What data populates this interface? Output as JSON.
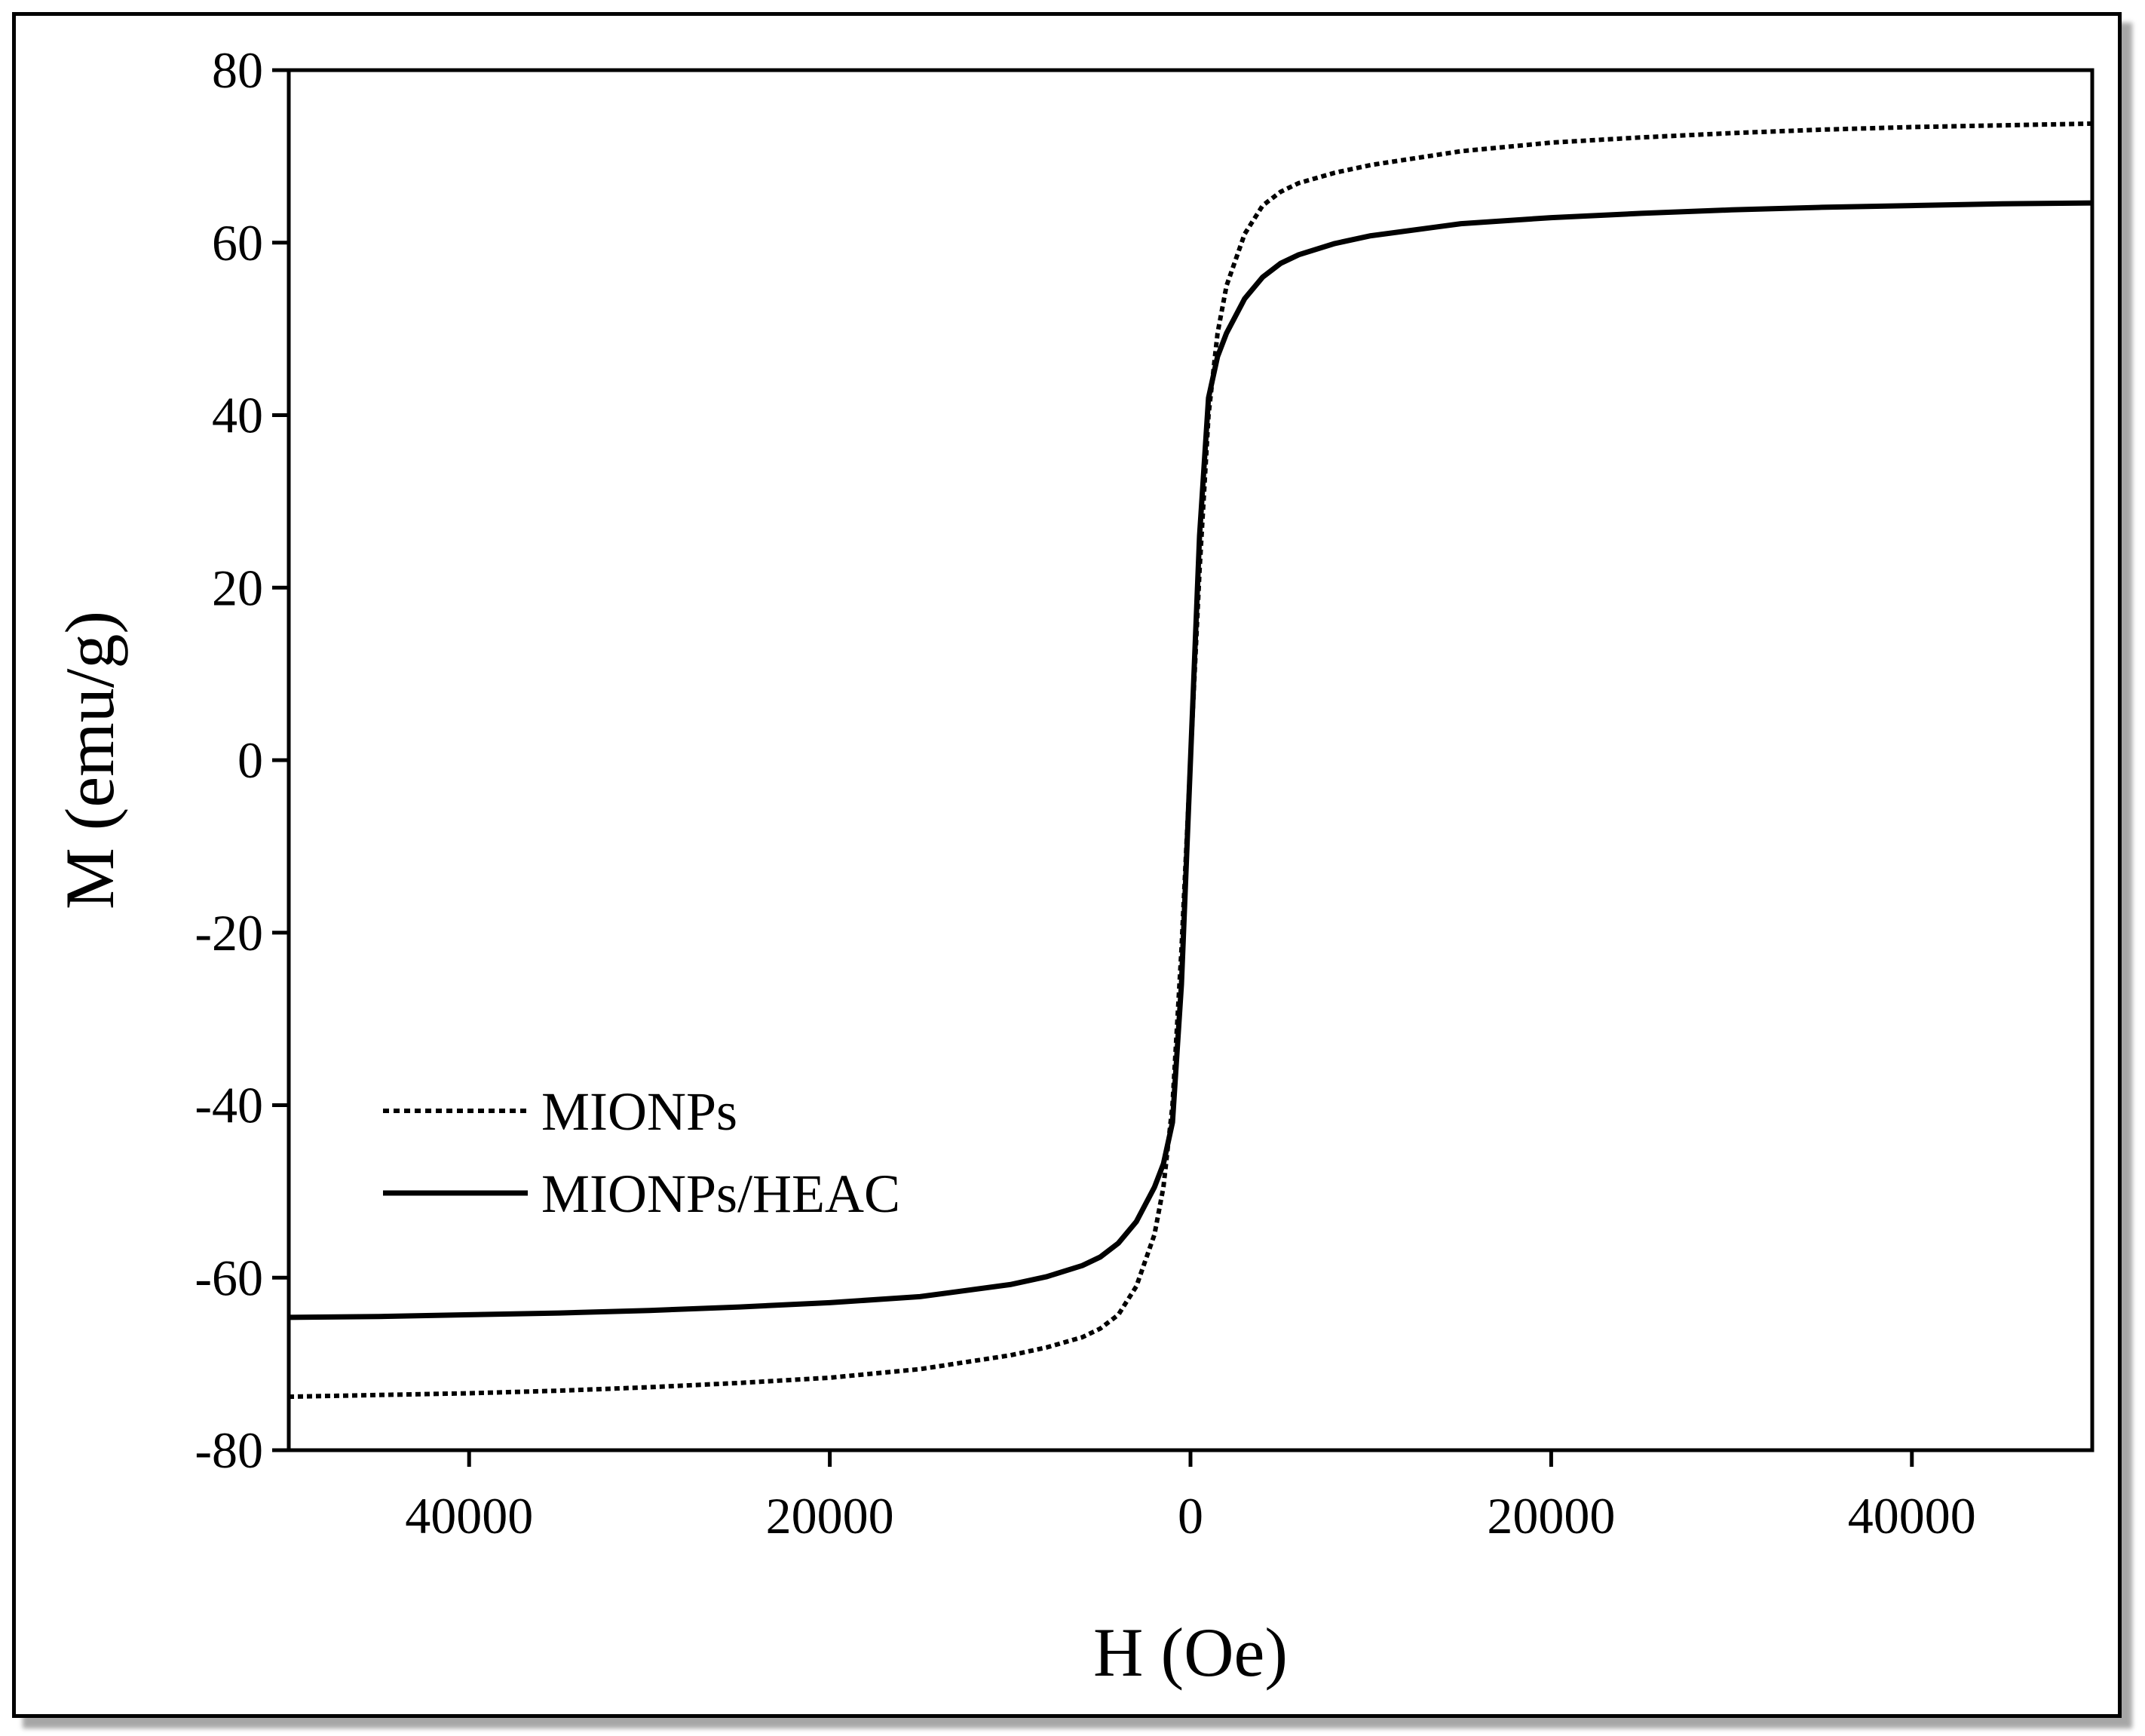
{
  "chart_data": {
    "type": "line",
    "title": "",
    "xlabel": "H (Oe)",
    "ylabel": "M (emu/g)",
    "xlim": [
      -50000,
      50000
    ],
    "ylim": [
      -80,
      80
    ],
    "x_ticks": [
      -40000,
      -20000,
      0,
      20000,
      40000
    ],
    "x_tick_labels": [
      "40000",
      "20000",
      "0",
      "20000",
      "40000"
    ],
    "y_ticks": [
      -80,
      -60,
      -40,
      -20,
      0,
      20,
      40,
      60,
      80
    ],
    "y_tick_labels": [
      "-80",
      "-60",
      "-40",
      "-20",
      "0",
      "20",
      "40",
      "60",
      "80"
    ],
    "grid": false,
    "legend_position": "bottom-left",
    "series": [
      {
        "name": "MIONPs",
        "style": "dotted",
        "color": "#000000",
        "x": [
          -50000,
          -45000,
          -40000,
          -35000,
          -30000,
          -25000,
          -20000,
          -15000,
          -10000,
          -8000,
          -6000,
          -5000,
          -4000,
          -3000,
          -2000,
          -1500,
          -1000,
          -500,
          0,
          500,
          1000,
          1500,
          2000,
          3000,
          4000,
          5000,
          6000,
          8000,
          10000,
          15000,
          20000,
          25000,
          30000,
          35000,
          40000,
          45000,
          50000
        ],
        "y": [
          -73.8,
          -73.6,
          -73.4,
          -73.1,
          -72.7,
          -72.2,
          -71.6,
          -70.6,
          -69.0,
          -68.1,
          -66.9,
          -65.9,
          -64.3,
          -61.0,
          -55.0,
          -49.5,
          -40.0,
          -22.0,
          0.0,
          22.0,
          40.0,
          49.5,
          55.0,
          61.0,
          64.3,
          65.9,
          66.9,
          68.1,
          69.0,
          70.6,
          71.6,
          72.2,
          72.7,
          73.1,
          73.4,
          73.6,
          73.8
        ]
      },
      {
        "name": "MIONPs/HEAC",
        "style": "solid",
        "color": "#000000",
        "x": [
          -50000,
          -45000,
          -40000,
          -35000,
          -30000,
          -25000,
          -20000,
          -15000,
          -10000,
          -8000,
          -6000,
          -5000,
          -4000,
          -3000,
          -2000,
          -1500,
          -1000,
          -500,
          0,
          500,
          1000,
          1500,
          2000,
          3000,
          4000,
          5000,
          6000,
          8000,
          10000,
          15000,
          20000,
          25000,
          30000,
          35000,
          40000,
          45000,
          50000
        ],
        "y": [
          -64.6,
          -64.5,
          -64.3,
          -64.1,
          -63.8,
          -63.4,
          -62.9,
          -62.2,
          -60.8,
          -59.9,
          -58.6,
          -57.6,
          -56.0,
          -53.5,
          -49.5,
          -46.8,
          -42.0,
          -26.0,
          0.0,
          26.0,
          42.0,
          46.8,
          49.5,
          53.5,
          56.0,
          57.6,
          58.6,
          59.9,
          60.8,
          62.2,
          62.9,
          63.4,
          63.8,
          64.1,
          64.3,
          64.5,
          64.6
        ]
      }
    ]
  }
}
